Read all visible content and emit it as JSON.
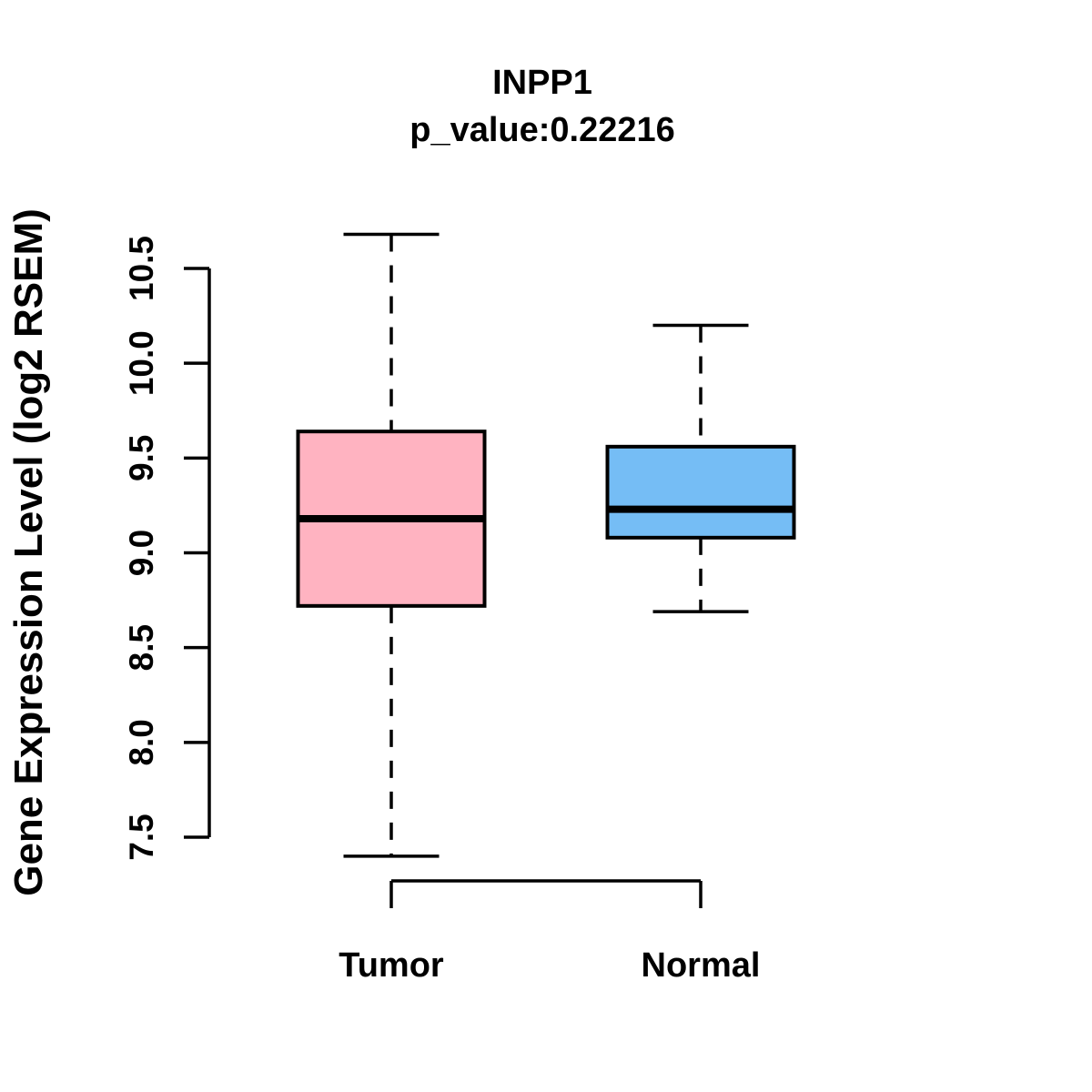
{
  "figure": {
    "title": "INPP1",
    "subtitle": "p_value:0.22216"
  },
  "chart_data": {
    "type": "boxplot",
    "title": "INPP1",
    "subtitle": "p_value:0.22216",
    "xlabel": "",
    "ylabel": "Gene Expression Level (log2 RSEM)",
    "ylim": [
      7.5,
      10.5
    ],
    "yticks": [
      7.5,
      8.0,
      8.5,
      9.0,
      9.5,
      10.0,
      10.5
    ],
    "ytick_labels": [
      "7.5",
      "8.0",
      "8.5",
      "9.0",
      "9.5",
      "10.0",
      "10.5"
    ],
    "categories": [
      "Tumor",
      "Normal"
    ],
    "grid": "off",
    "legend": "none",
    "whisker_style": "dashed",
    "series": [
      {
        "name": "Tumor",
        "whisker_low": 7.4,
        "q1": 8.72,
        "median": 9.18,
        "q3": 9.64,
        "whisker_high": 10.68,
        "fill": "#FFB3C1"
      },
      {
        "name": "Normal",
        "whisker_low": 8.69,
        "q1": 9.08,
        "median": 9.23,
        "q3": 9.56,
        "whisker_high": 10.2,
        "fill": "#75BDF5"
      }
    ],
    "colors": {
      "stroke": "#000000",
      "background": "#FFFFFF",
      "tumor_fill": "#FFB3C1",
      "normal_fill": "#75BDF5"
    }
  }
}
